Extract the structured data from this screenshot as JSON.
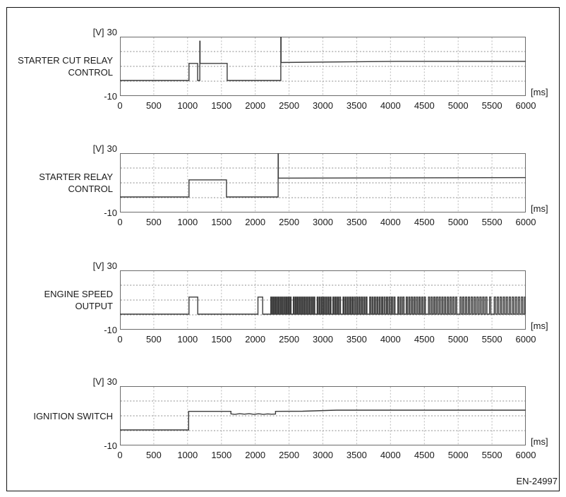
{
  "figure_id": "EN-24997",
  "axis": {
    "y_unit": "[V]",
    "y_max": "30",
    "y_min": "-10",
    "x_unit": "[ms]",
    "x_ticks": [
      "0",
      "500",
      "1000",
      "1500",
      "2000",
      "2500",
      "3000",
      "3500",
      "4000",
      "4500",
      "5000",
      "5500",
      "6000"
    ],
    "x_range_ms": [
      0,
      6000
    ],
    "y_range_v": [
      -10,
      30
    ],
    "x_grid_interval_ms": 500,
    "y_grid_interval_v": 10,
    "grid": "dotted"
  },
  "chart_data": [
    {
      "type": "line",
      "title_line1": "STARTER CUT RELAY",
      "title_line2": "CONTROL",
      "xlabel": "[ms]",
      "ylabel": "[V]",
      "xlim": [
        0,
        6000
      ],
      "ylim": [
        -10,
        30
      ],
      "points_ms_v": [
        [
          0,
          0.5
        ],
        [
          1020,
          0.5
        ],
        [
          1020,
          12
        ],
        [
          1148,
          12
        ],
        [
          1148,
          0.5
        ],
        [
          1180,
          0.5
        ],
        [
          1180,
          27
        ],
        [
          1184,
          27
        ],
        [
          1184,
          12
        ],
        [
          1585,
          12
        ],
        [
          1585,
          0.5
        ],
        [
          2378,
          0.5
        ],
        [
          2378,
          30
        ],
        [
          2382,
          30
        ],
        [
          2382,
          12.6
        ],
        [
          4100,
          13.4
        ],
        [
          6000,
          13.4
        ]
      ]
    },
    {
      "type": "line",
      "title_line1": "STARTER RELAY",
      "title_line2": "CONTROL",
      "xlabel": "[ms]",
      "ylabel": "[V]",
      "xlim": [
        0,
        6000
      ],
      "ylim": [
        -10,
        30
      ],
      "points_ms_v": [
        [
          0,
          0.5
        ],
        [
          1020,
          0.5
        ],
        [
          1020,
          12
        ],
        [
          1575,
          12
        ],
        [
          1575,
          0.5
        ],
        [
          2338,
          0.5
        ],
        [
          2338,
          30
        ],
        [
          2342,
          30
        ],
        [
          2342,
          13.2
        ],
        [
          6000,
          13.5
        ]
      ]
    },
    {
      "type": "line",
      "title_line1": "ENGINE SPEED",
      "title_line2": "OUTPUT",
      "xlabel": "[ms]",
      "ylabel": "[V]",
      "xlim": [
        0,
        6000
      ],
      "ylim": [
        -10,
        30
      ],
      "points_ms_v": [
        [
          0,
          0.5
        ],
        [
          1020,
          0.5
        ],
        [
          1020,
          12
        ],
        [
          1150,
          12
        ],
        [
          1150,
          0.5
        ],
        [
          2040,
          0.5
        ],
        [
          2040,
          12
        ],
        [
          2110,
          12
        ],
        [
          2110,
          0.5
        ],
        [
          2230,
          0.5
        ]
      ],
      "burst": {
        "description": "square-wave pulse train",
        "start_ms": 2230,
        "end_ms": 6000,
        "low_v": 0.5,
        "high_v": 12,
        "period_start_ms": 28,
        "period_end_ms": 46
      }
    },
    {
      "type": "line",
      "title_line1": "IGNITION SWITCH",
      "title_line2": "",
      "xlabel": "[ms]",
      "ylabel": "[V]",
      "xlim": [
        0,
        6000
      ],
      "ylim": [
        -10,
        30
      ],
      "points_ms_v": [
        [
          0,
          0.5
        ],
        [
          1015,
          0.5
        ],
        [
          1015,
          13
        ],
        [
          1640,
          13
        ],
        [
          1640,
          11.3
        ],
        [
          1700,
          11.0
        ],
        [
          1770,
          11.5
        ],
        [
          1840,
          11.1
        ],
        [
          1910,
          11.5
        ],
        [
          1980,
          11.0
        ],
        [
          2050,
          11.4
        ],
        [
          2120,
          11.0
        ],
        [
          2180,
          11.3
        ],
        [
          2240,
          11.1
        ],
        [
          2300,
          11.2
        ],
        [
          2300,
          13
        ],
        [
          2700,
          13.1
        ],
        [
          3200,
          13.8
        ],
        [
          6000,
          13.8
        ]
      ]
    }
  ]
}
